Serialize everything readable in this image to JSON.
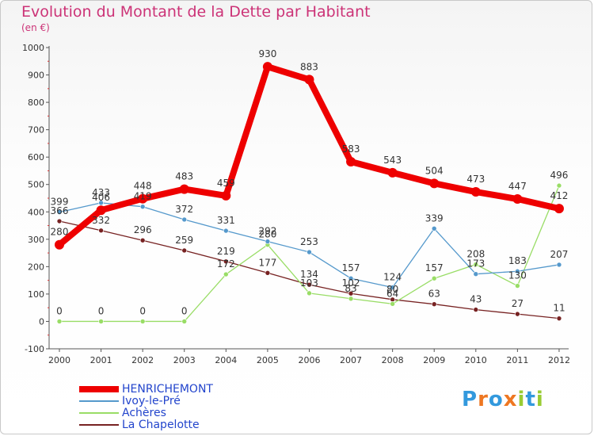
{
  "chart_data": {
    "type": "line",
    "title": "Evolution du Montant de la Dette par Habitant",
    "subtitle": "(en €)",
    "categories": [
      "2000",
      "2001",
      "2002",
      "2003",
      "2004",
      "2005",
      "2006",
      "2007",
      "2008",
      "2009",
      "2010",
      "2011",
      "2012"
    ],
    "ylim": [
      -100,
      1000
    ],
    "yticks": [
      -100,
      0,
      100,
      200,
      300,
      400,
      500,
      600,
      700,
      800,
      900,
      1000
    ],
    "grid": false,
    "series": [
      {
        "name": "HENRICHEMONT",
        "color": "#ee0000",
        "values": [
          280,
          406,
          448,
          483,
          459,
          930,
          883,
          583,
          543,
          504,
          473,
          447,
          412
        ]
      },
      {
        "name": "Ivoy-le-Pré",
        "color": "#5599cc",
        "values": [
          399,
          433,
          419,
          372,
          331,
          292,
          253,
          157,
          124,
          339,
          173,
          183,
          207
        ]
      },
      {
        "name": "Achères",
        "color": "#99dd66",
        "values": [
          0,
          0,
          0,
          0,
          172,
          280,
          103,
          83,
          64,
          157,
          208,
          130,
          496
        ]
      },
      {
        "name": "La Chapelotte",
        "color": "#772222",
        "values": [
          366,
          332,
          296,
          259,
          219,
          177,
          134,
          102,
          80,
          63,
          43,
          27,
          11
        ]
      }
    ]
  },
  "branding": {
    "logo_text": "Proxiti"
  }
}
